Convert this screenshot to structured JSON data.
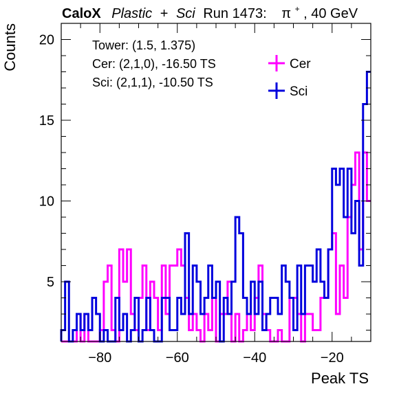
{
  "title": {
    "experiment": "CaloX",
    "material_a": "Plastic",
    "plus": "+",
    "material_b": "Sci",
    "run": "Run 1473:",
    "particle": "π",
    "charge": "+",
    "energy": ", 40 GeV"
  },
  "info": {
    "tower": "Tower: (1.5, 1.375)",
    "cer": "Cer: (2,1,0), -16.50 TS",
    "sci": "Sci: (2,1,1), -10.50 TS"
  },
  "colors": {
    "cer": "#ff00ff",
    "sci": "#0000dd",
    "axis": "#000000"
  },
  "chart_data": {
    "type": "histogram",
    "xlabel": "Peak TS",
    "ylabel": "Counts",
    "xlim": [
      -90,
      -10
    ],
    "ylim": [
      1.3,
      21
    ],
    "x_ticks": [
      -80,
      -60,
      -40,
      -20
    ],
    "x_tick_labels": [
      "−80",
      "−60",
      "−40",
      "−20"
    ],
    "y_ticks": [
      5,
      10,
      15,
      20
    ],
    "y_tick_labels": [
      "5",
      "10",
      "15",
      "20"
    ],
    "bin_width": 1,
    "bin_edges_start": -90,
    "legend_position": "top-right",
    "series": [
      {
        "name": "Cer",
        "values": [
          1,
          1,
          1,
          1,
          3,
          1,
          3,
          1,
          1,
          1,
          2,
          5,
          6,
          2,
          1,
          7,
          5,
          7,
          3,
          2,
          4,
          6,
          2,
          5,
          4,
          2,
          6,
          3,
          6,
          6,
          7,
          6,
          4,
          2,
          3,
          2,
          1,
          3,
          2,
          4,
          1,
          3,
          3,
          5,
          1,
          3,
          1,
          2,
          3,
          2,
          4,
          6,
          3,
          2,
          1,
          1,
          2,
          1,
          1,
          4,
          4,
          3,
          1,
          3,
          3,
          2,
          2,
          4,
          4,
          7,
          8,
          3,
          6,
          4,
          9,
          11,
          13,
          7,
          13,
          10
        ]
      },
      {
        "name": "Sci",
        "values": [
          2,
          5,
          1,
          2,
          3,
          2,
          3,
          2,
          4,
          3,
          1,
          2,
          1,
          1,
          4,
          2,
          3,
          1,
          2,
          4,
          1,
          2,
          4,
          2,
          1,
          1,
          4,
          4,
          2,
          2,
          4,
          3,
          8,
          3,
          6,
          5,
          3,
          4,
          6,
          4,
          5,
          1,
          4,
          3,
          5,
          9,
          8,
          4,
          3,
          5,
          3,
          5,
          2,
          3,
          4,
          4,
          3,
          6,
          5,
          4,
          2,
          6,
          3,
          6,
          6,
          5,
          7,
          5,
          4,
          7,
          12,
          11,
          12,
          9,
          12,
          8,
          10,
          6,
          16,
          18
        ]
      }
    ]
  }
}
